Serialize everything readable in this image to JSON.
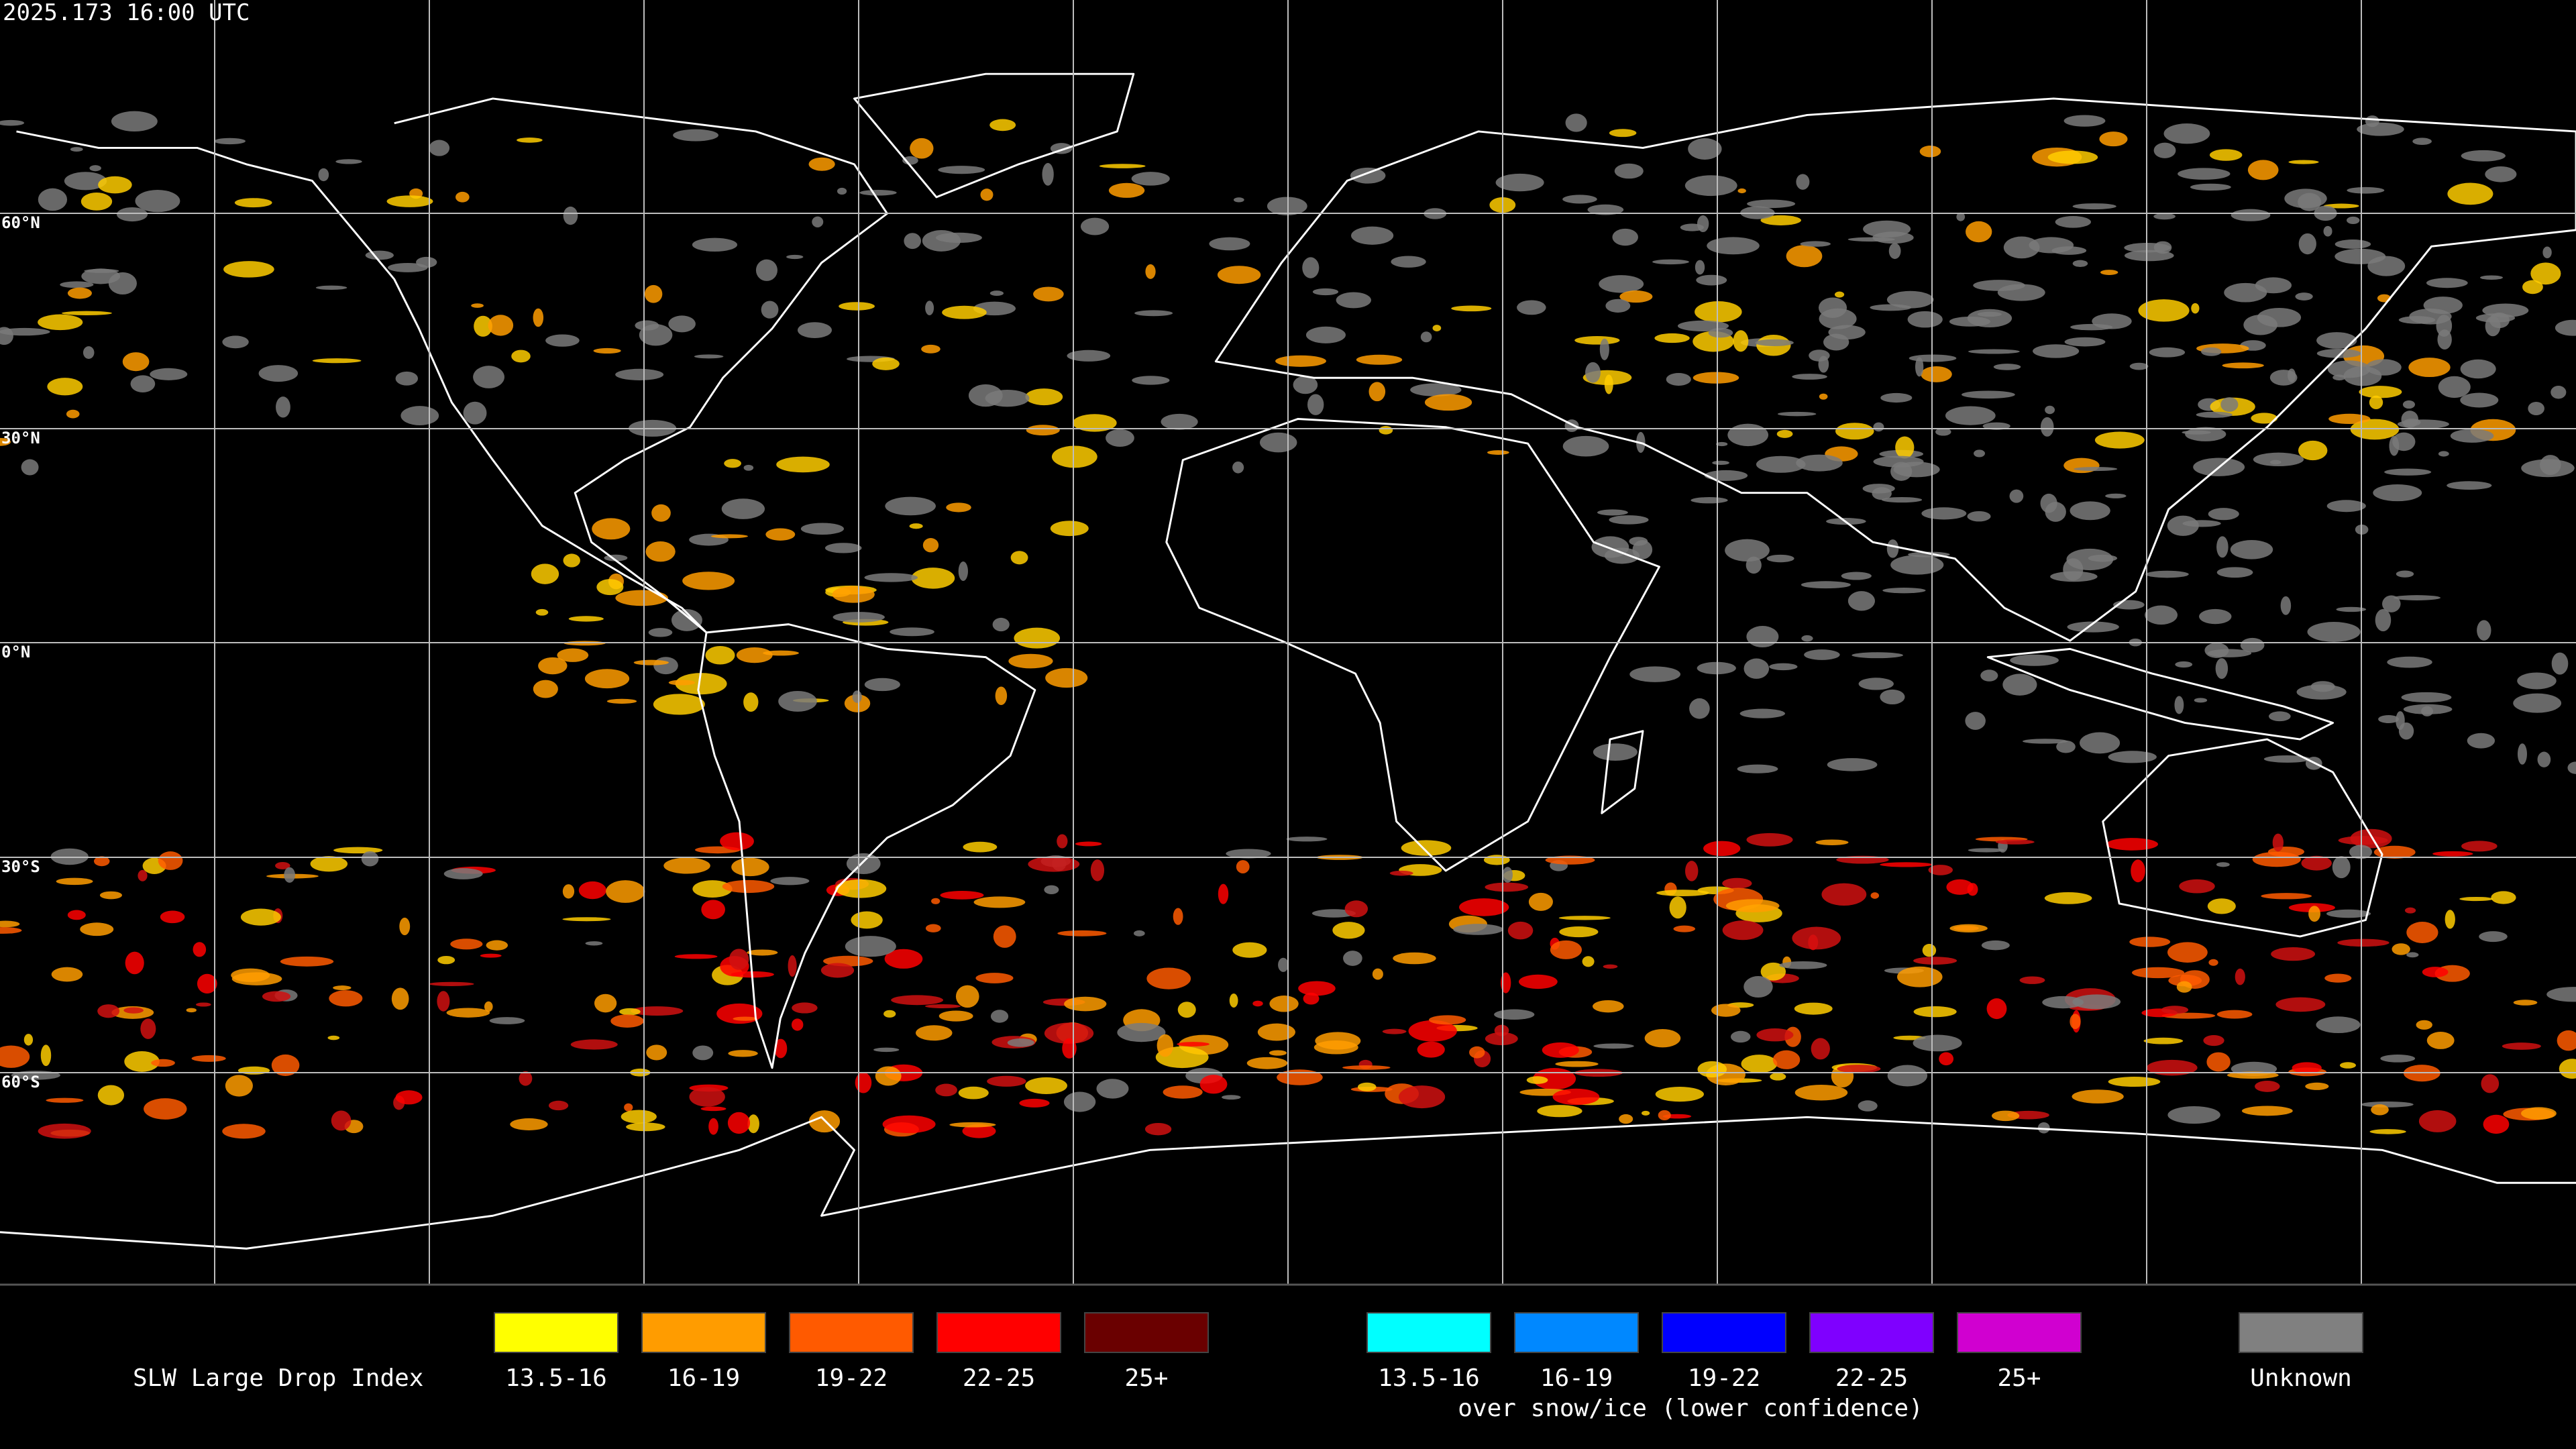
{
  "timestamp": "2025.173 16:00 UTC",
  "latitude_labels": [
    "60°N",
    "30°N",
    "0°N",
    "30°S",
    "60°S"
  ],
  "legend": {
    "title": "SLW Large Drop Index",
    "groups": [
      {
        "items": [
          {
            "label": "13.5-16",
            "color": "#ffff00"
          },
          {
            "label": "16-19",
            "color": "#ff9c00"
          },
          {
            "label": "19-22",
            "color": "#ff5a00"
          },
          {
            "label": "22-25",
            "color": "#ff0000"
          },
          {
            "label": "25+",
            "color": "#6a0000"
          }
        ]
      },
      {
        "items": [
          {
            "label": "13.5-16",
            "color": "#00ffff"
          },
          {
            "label": "16-19",
            "color": "#0088ff"
          },
          {
            "label": "19-22",
            "color": "#0000ff"
          },
          {
            "label": "22-25",
            "color": "#7f00ff"
          },
          {
            "label": "25+",
            "color": "#d000d0"
          }
        ],
        "caption": "over snow/ice (lower confidence)"
      }
    ],
    "unknown": {
      "label": "Unknown",
      "color": "#808080"
    }
  }
}
